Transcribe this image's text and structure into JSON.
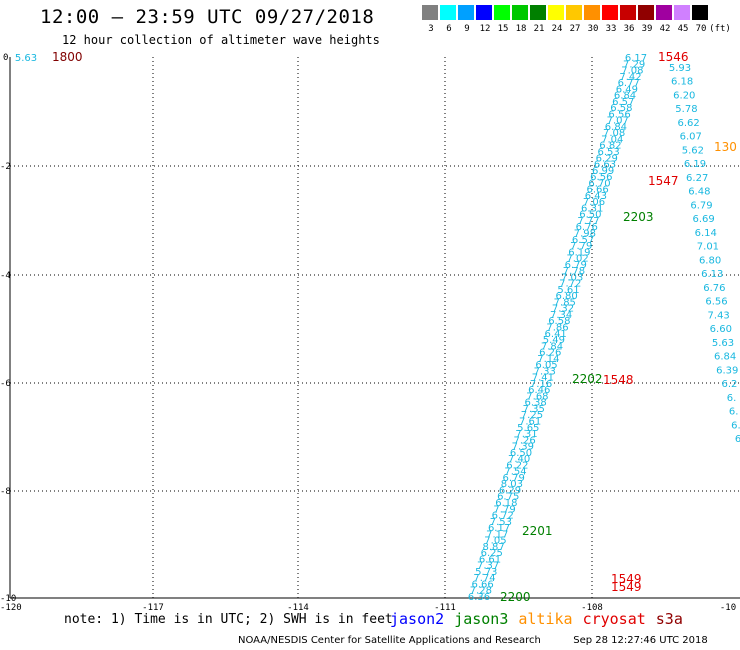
{
  "header": {
    "title": "12:00 — 23:59 UTC 09/27/2018",
    "subtitle": "12 hour collection of altimeter wave heights"
  },
  "color_scale": {
    "unit": "(ft)",
    "bins": [
      {
        "label": "3",
        "color": "#808080"
      },
      {
        "label": "6",
        "color": "#00ffff"
      },
      {
        "label": "9",
        "color": "#00a0ff"
      },
      {
        "label": "12",
        "color": "#0000ff"
      },
      {
        "label": "15",
        "color": "#00ff00"
      },
      {
        "label": "18",
        "color": "#00c800"
      },
      {
        "label": "21",
        "color": "#008000"
      },
      {
        "label": "24",
        "color": "#ffff00"
      },
      {
        "label": "27",
        "color": "#ffc800"
      },
      {
        "label": "30",
        "color": "#ff9000"
      },
      {
        "label": "33",
        "color": "#ff0000"
      },
      {
        "label": "36",
        "color": "#c80000"
      },
      {
        "label": "39",
        "color": "#900000"
      },
      {
        "label": "42",
        "color": "#a000a0"
      },
      {
        "label": "45",
        "color": "#d080ff"
      },
      {
        "label": "70",
        "color": "#000000"
      }
    ]
  },
  "map": {
    "lon_labels": [
      "-120",
      "-117",
      "-114",
      "-111",
      "-108",
      "-10"
    ],
    "lat_labels": [
      "0",
      "-2",
      "-4",
      "-6",
      "-8",
      "-10"
    ],
    "lon_range": [
      -120,
      -105
    ],
    "lat_range": [
      0,
      -10
    ]
  },
  "tracks": [
    {
      "name": "track-a",
      "color": "#1ab8e0",
      "values": [
        "6.17",
        "7.29",
        "7.08",
        "7.42",
        "6.77",
        "6.49",
        "6.84",
        "6.57",
        "6.58",
        "6.56",
        "7.07",
        "6.84",
        "7.08",
        "7.04",
        "6.82",
        "6.53",
        "6.29",
        "6.63",
        "6.99",
        "6.56",
        "6.70",
        "6.66",
        "6.43",
        "7.06",
        "6.31",
        "6.50",
        "7.77",
        "6.76",
        "7.98",
        "6.57",
        "7.79",
        "6.19",
        "7.02",
        "6.79",
        "7.78",
        "7.03",
        "7.72",
        "5.61",
        "6.80",
        "7.85",
        "7.32",
        "7.34",
        "6.58",
        "7.86",
        "6.41",
        "5.49",
        "7.84",
        "6.26",
        "7.14",
        "6.05",
        "7.33",
        "7.41",
        "7.16",
        "6.46",
        "7.68",
        "6.38",
        "7.35",
        "7.25",
        "7.61",
        "5.65",
        "7.31",
        "7.26",
        "7.39",
        "6.50",
        "7.40",
        "6.22",
        "7.54",
        "6.79",
        "8.03",
        "6.29",
        "6.75",
        "6.18",
        "7.79",
        "6.72",
        "7.53",
        "6.17",
        "7.17",
        "7.05",
        "8.87",
        "6.25",
        "6.61",
        "7.37",
        "5.73",
        "7.74",
        "6.66",
        "7.28",
        "6.36"
      ]
    },
    {
      "name": "track-b",
      "color": "#1ab8e0",
      "values": [
        "5.93",
        "6.18",
        "6.20",
        "5.78",
        "6.62",
        "6.07",
        "5.62",
        "6.19",
        "6.27",
        "6.48",
        "6.79",
        "6.69",
        "6.14",
        "7.01",
        "6.80",
        "6.13",
        "6.76",
        "6.56",
        "7.43",
        "6.60",
        "5.63",
        "6.84",
        "6.39",
        "6.2",
        "6.",
        "6.",
        "6.",
        "6"
      ]
    },
    {
      "name": "track-c",
      "color": "#1ab8e0",
      "values": [
        "5.63"
      ]
    }
  ],
  "time_labels": [
    {
      "text": "1800",
      "color": "#800000"
    },
    {
      "text": "1546",
      "color": "#e00000"
    },
    {
      "text": "130",
      "color": "#ff9000"
    },
    {
      "text": "1547",
      "color": "#e00000"
    },
    {
      "text": "2203",
      "color": "#008000"
    },
    {
      "text": "2202",
      "color": "#008000"
    },
    {
      "text": "1548",
      "color": "#e00000"
    },
    {
      "text": "2201",
      "color": "#008000"
    },
    {
      "text": "1549",
      "color": "#e00000"
    },
    {
      "text": "1549",
      "color": "#e00000"
    },
    {
      "text": "2200",
      "color": "#008000"
    }
  ],
  "legend": {
    "note": "note: 1) Time is in UTC; 2) SWH is in feet",
    "satellites": [
      {
        "name": "jason2",
        "color": "#0000ff"
      },
      {
        "name": "jason3",
        "color": "#008000"
      },
      {
        "name": "altika",
        "color": "#ff9000"
      },
      {
        "name": "cryosat",
        "color": "#e00000"
      },
      {
        "name": "s3a",
        "color": "#900000"
      }
    ]
  },
  "footer": {
    "credit": "NOAA/NESDIS Center for Satellite Applications and Research",
    "timestamp": "Sep 28 12:27:46 UTC 2018"
  }
}
